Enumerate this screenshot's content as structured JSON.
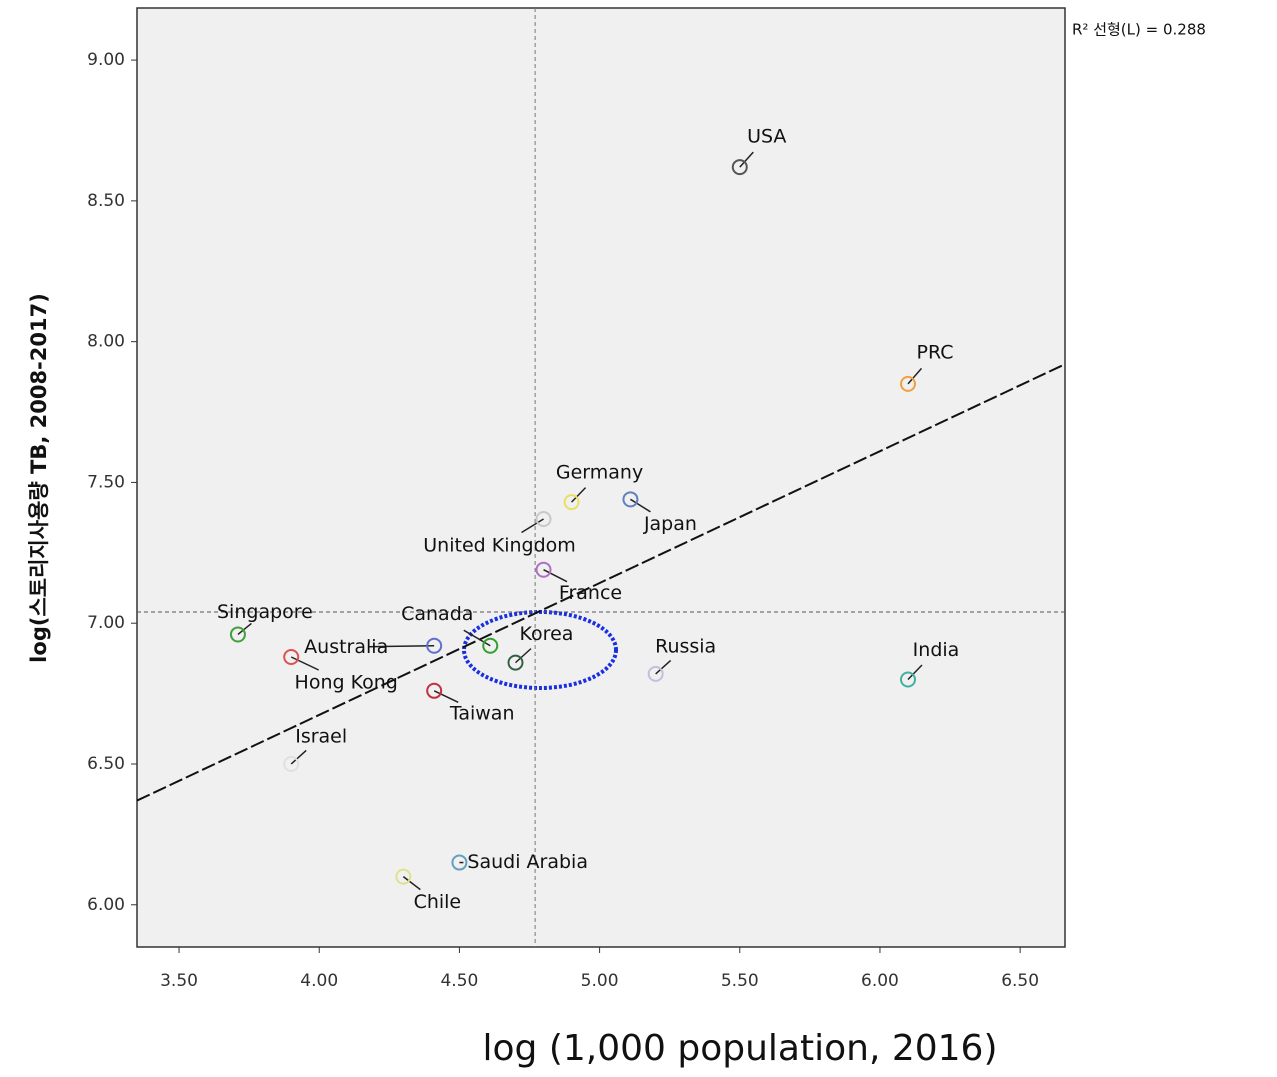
{
  "chart_data": {
    "type": "scatter",
    "y_label": "log(스토리지사용량 TB, 2008-2017)",
    "x_label": "log (1,000 population, 2016)",
    "annotation": "R² 선형(L) = 0.288",
    "labels": [
      "USA",
      "PRC",
      "Germany",
      "Japan",
      "United Kingdom",
      "France",
      "Singapore",
      "Canada",
      "Australia",
      "Korea",
      "Russia",
      "India",
      "Hong Kong",
      "Taiwan",
      "Israel",
      "Saudi Arabia",
      "Chile"
    ],
    "x": [
      5.5,
      6.1,
      4.9,
      5.11,
      4.8,
      4.8,
      3.71,
      4.61,
      4.41,
      4.7,
      5.2,
      6.1,
      3.9,
      4.41,
      3.9,
      4.5,
      4.3
    ],
    "y": [
      8.62,
      7.85,
      7.43,
      7.44,
      7.37,
      7.19,
      6.96,
      6.92,
      6.92,
      6.86,
      6.82,
      6.8,
      6.88,
      6.76,
      6.5,
      6.15,
      6.1
    ],
    "colors": [
      "#555555",
      "#f0a040",
      "#e8e060",
      "#6080c0",
      "#c8c8c8",
      "#b070c0",
      "#40a040",
      "#30a030",
      "#6070d0",
      "#306040",
      "#c0c0e0",
      "#40b0a0",
      "#e05050",
      "#c03040",
      "#e0e0e0",
      "#60a0c0",
      "#e0e090"
    ],
    "xlim": [
      3.35,
      6.66
    ],
    "ylim": [
      5.85,
      9.185
    ],
    "xticks": [
      {
        "value": 3.5,
        "label": "3.50"
      },
      {
        "value": 4,
        "label": "4.00"
      },
      {
        "value": 4.5,
        "label": "4.50"
      },
      {
        "value": 5,
        "label": "5.00"
      },
      {
        "value": 5.5,
        "label": "5.50"
      },
      {
        "value": 6,
        "label": "6.00"
      },
      {
        "value": 6.5,
        "label": "6.50"
      }
    ],
    "yticks": [
      {
        "value": 6,
        "label": "6.00"
      },
      {
        "value": 6.5,
        "label": "6.50"
      },
      {
        "value": 7,
        "label": "7.00"
      },
      {
        "value": 7.5,
        "label": "7.50"
      },
      {
        "value": 8,
        "label": "8.00"
      },
      {
        "value": 8.5,
        "label": "8.50"
      },
      {
        "value": 9,
        "label": "9.00"
      }
    ],
    "mean_x": 4.77,
    "mean_y": 7.04,
    "fit_line": {
      "x": [
        3.35,
        6.66
      ],
      "y": [
        6.37,
        7.92
      ]
    }
  }
}
